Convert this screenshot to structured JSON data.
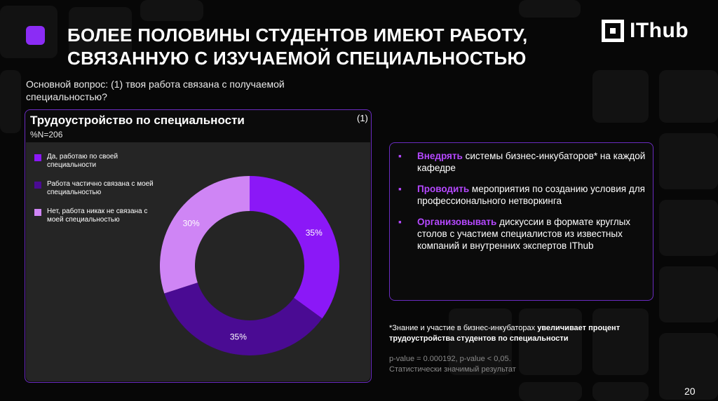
{
  "slide": {
    "title_line1": "БОЛЕЕ ПОЛОВИНЫ СТУДЕНТОВ ИМЕЮТ РАБОТУ,",
    "title_line2": "СВЯЗАННУЮ С ИЗУЧАЕМОЙ СПЕЦИАЛЬНОСТЬЮ",
    "logo_text": "IThub",
    "question": "Основной вопрос: (1) твоя работа связана с получаемой специальностью?",
    "page_number": "20"
  },
  "chart_data": {
    "type": "pie",
    "style": "donut",
    "title": "Трудоустройство по специальности",
    "note": "%N=206",
    "ref": "(1)",
    "legend_position": "left",
    "categories": [
      "Да, работаю по своей специальности",
      "Работа частично связана с моей специальностью",
      "Нет, работа никак не связана с моей специальностью"
    ],
    "values": [
      35,
      35,
      30
    ],
    "labels": [
      "35%",
      "35%",
      "30%"
    ],
    "colors": [
      "#8b18f7",
      "#4a0b93",
      "#cf85f5"
    ]
  },
  "recommendations": [
    {
      "key": "Внедрять",
      "text": " системы бизнес-инкубаторов* на каждой кафедре"
    },
    {
      "key": "Проводить",
      "text": " мероприятия по созданию условия для профессионального нетворкинга"
    },
    {
      "key": "Организовывать",
      "text": " дискуссии в формате круглых столов с участием специалистов из известных компаний и внутренних экспертов IThub"
    }
  ],
  "bullet_glyph": "▪",
  "footnote": {
    "prefix": "*Знание и участие в бизнес-инкубаторах ",
    "bold": "увеличивает процент трудоустройства студентов по специальности"
  },
  "stats": {
    "pvalue": "p-value = 0.000192, p-value < 0,05.",
    "significance": "Статистически значимый результат"
  }
}
